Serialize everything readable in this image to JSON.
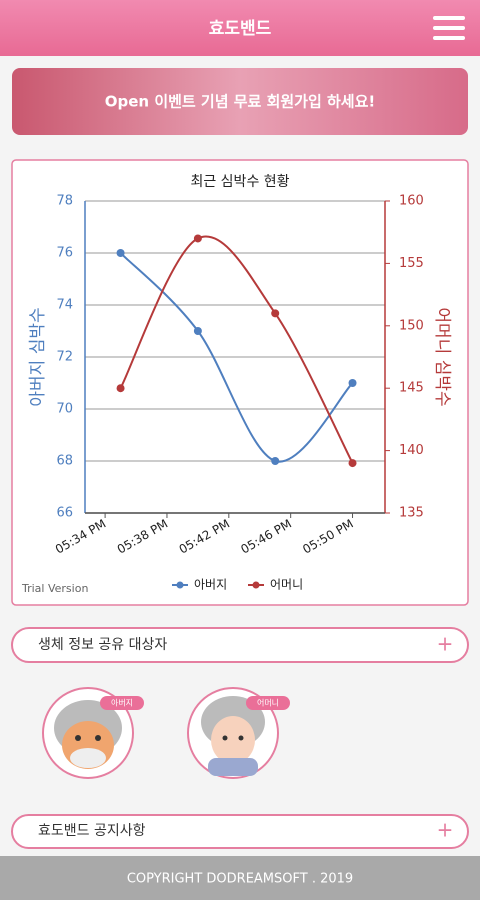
{
  "header": {
    "title": "효도밴드"
  },
  "banner": {
    "text": "Open 이벤트 기념 무료 회원가입 하세요!"
  },
  "chart_data": {
    "type": "line",
    "title": "최근 심박수 현황",
    "ylabel": "아버지 심박수",
    "y2label": "어머니 심박수",
    "x": [
      35,
      40,
      45,
      50
    ],
    "xlim": [
      32.7,
      52.1
    ],
    "xticks": [
      {
        "value": 34,
        "label": "05:34 PM"
      },
      {
        "value": 38,
        "label": "05:38 PM"
      },
      {
        "value": 42,
        "label": "05:42 PM"
      },
      {
        "value": 46,
        "label": "05:46 PM"
      },
      {
        "value": 50,
        "label": "05:50 PM"
      }
    ],
    "ylim": [
      66,
      78
    ],
    "yticks": [
      66,
      68,
      70,
      72,
      74,
      76,
      78
    ],
    "y2lim": [
      135,
      160
    ],
    "y2ticks": [
      135,
      140,
      145,
      150,
      155,
      160
    ],
    "grid": true,
    "series": [
      {
        "name": "아버지",
        "color": "#4f7fbf",
        "values": [
          76,
          73,
          68,
          71
        ]
      },
      {
        "name": "어머니",
        "color": "#b53a3a",
        "values": [
          145,
          157,
          151,
          139
        ],
        "axis": "y2"
      }
    ],
    "watermark": "Trial Version"
  },
  "share": {
    "label": "생체 정보 공유 대상자",
    "button": "+"
  },
  "profiles": [
    {
      "name": "아버지"
    },
    {
      "name": "어머니"
    }
  ],
  "notice": {
    "label": "효도밴드 공지사항",
    "button": "+"
  },
  "footer": {
    "text": "COPYRIGHT DODREAMSOFT . 2019"
  }
}
